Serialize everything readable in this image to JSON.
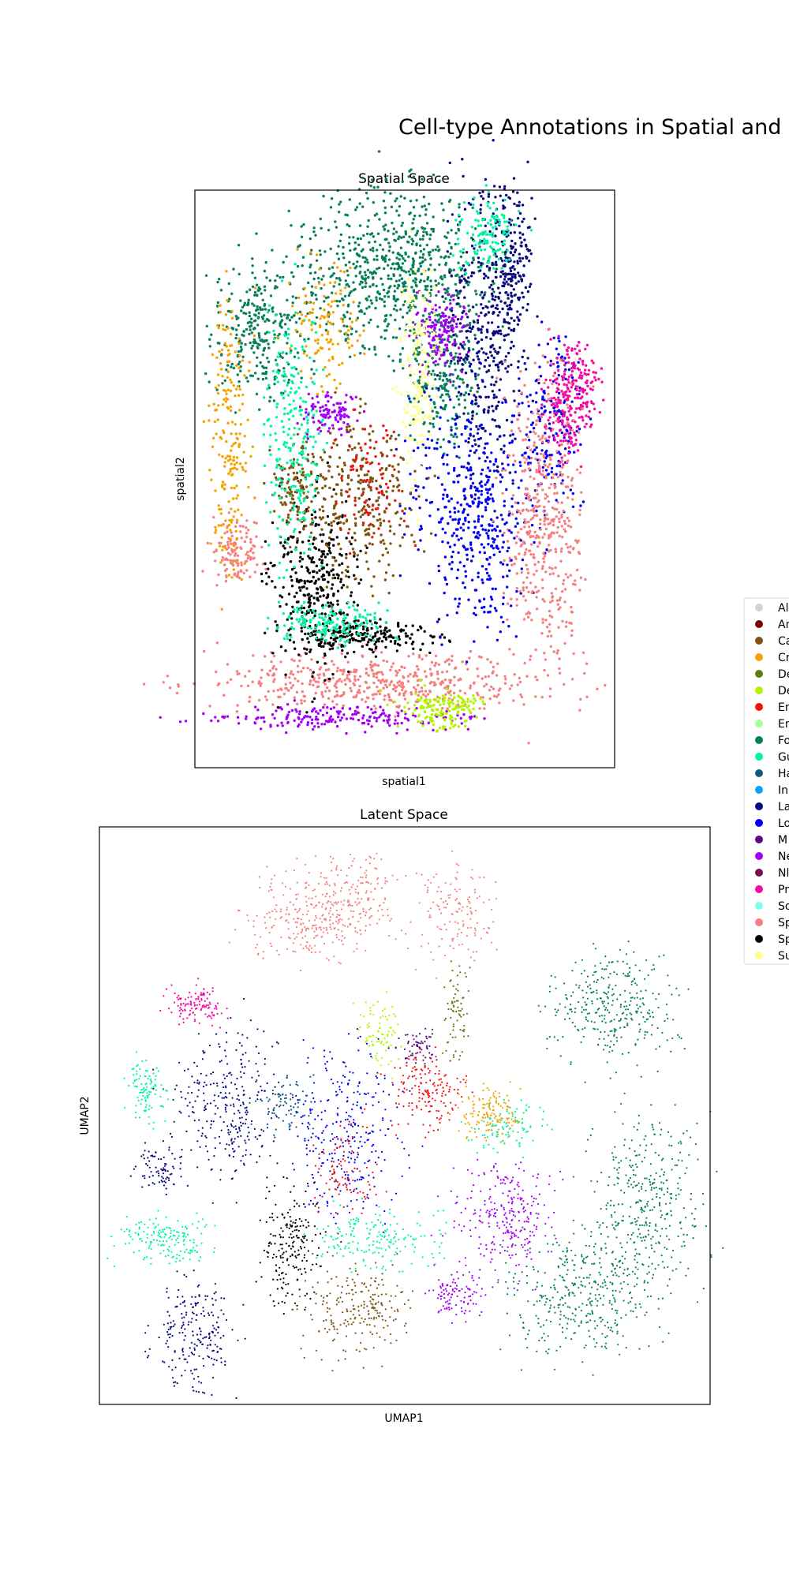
{
  "figure": {
    "title": "Cell-type Annotations in Spatial and"
  },
  "legend": {
    "placement": "right, clipped at page edge",
    "items": [
      {
        "label": "Al",
        "color": "#d3d3d3"
      },
      {
        "label": "An",
        "color": "#7f0000"
      },
      {
        "label": "Ca",
        "color": "#7f5410"
      },
      {
        "label": "Cr",
        "color": "#f4a300"
      },
      {
        "label": "De",
        "color": "#5b7f0f"
      },
      {
        "label": "De",
        "color": "#b2f500"
      },
      {
        "label": "En",
        "color": "#f51010"
      },
      {
        "label": "En",
        "color": "#a3ffa3"
      },
      {
        "label": "Fo",
        "color": "#087f5b"
      },
      {
        "label": "Gu",
        "color": "#00f5a3"
      },
      {
        "label": "Ha",
        "color": "#0f5b7f"
      },
      {
        "label": "In",
        "color": "#0aa3f5"
      },
      {
        "label": "La",
        "color": "#0a0a7f"
      },
      {
        "label": "Lo",
        "color": "#0000f5"
      },
      {
        "label": "M",
        "color": "#5b0a7f"
      },
      {
        "label": "Ne",
        "color": "#a300f5"
      },
      {
        "label": "Nl",
        "color": "#7f0a54"
      },
      {
        "label": "Pr",
        "color": "#f50aa3"
      },
      {
        "label": "So",
        "color": "#80fff0"
      },
      {
        "label": "Sp",
        "color": "#f58080"
      },
      {
        "label": "Sp",
        "color": "#000000"
      },
      {
        "label": "Su",
        "color": "#ffff80"
      }
    ]
  },
  "chart_data": [
    {
      "type": "scatter",
      "title": "Spatial Space",
      "xlabel": "spatial1",
      "ylabel": "spatial2",
      "axis_ticks": false,
      "grid": false,
      "clusters": [
        {
          "label_index": 8,
          "region": "top-left and top-center"
        },
        {
          "label_index": 12,
          "region": "top-right ridge"
        },
        {
          "label_index": 13,
          "region": "right-center band"
        },
        {
          "label_index": 17,
          "region": "far right block"
        },
        {
          "label_index": 19,
          "region": "right column and bottom band"
        },
        {
          "label_index": 20,
          "region": "lower-left arc"
        },
        {
          "label_index": 2,
          "region": "center ring"
        },
        {
          "label_index": 9,
          "region": "left arcs"
        },
        {
          "label_index": 15,
          "region": "center and bottom"
        },
        {
          "label_index": 3,
          "region": "left edge"
        },
        {
          "label_index": 21,
          "region": "inner arcs"
        },
        {
          "label_index": 5,
          "region": "bottom center"
        },
        {
          "label_index": 6,
          "region": "scattered"
        }
      ]
    },
    {
      "type": "scatter",
      "title": "Latent Space",
      "xlabel": "UMAP1",
      "ylabel": "UMAP2",
      "axis_ticks": false,
      "grid": false,
      "clusters": [
        {
          "label_index": 19,
          "region": "top center"
        },
        {
          "label_index": 8,
          "region": "right side"
        },
        {
          "label_index": 17,
          "region": "upper-left"
        },
        {
          "label_index": 12,
          "region": "left and lower-left"
        },
        {
          "label_index": 13,
          "region": "center"
        },
        {
          "label_index": 20,
          "region": "lower center-left"
        },
        {
          "label_index": 2,
          "region": "bottom center"
        },
        {
          "label_index": 9,
          "region": "left and center"
        },
        {
          "label_index": 15,
          "region": "center-right"
        },
        {
          "label_index": 3,
          "region": "center-right"
        },
        {
          "label_index": 6,
          "region": "center"
        },
        {
          "label_index": 4,
          "region": "top center"
        },
        {
          "label_index": 5,
          "region": "upper center"
        }
      ]
    }
  ]
}
